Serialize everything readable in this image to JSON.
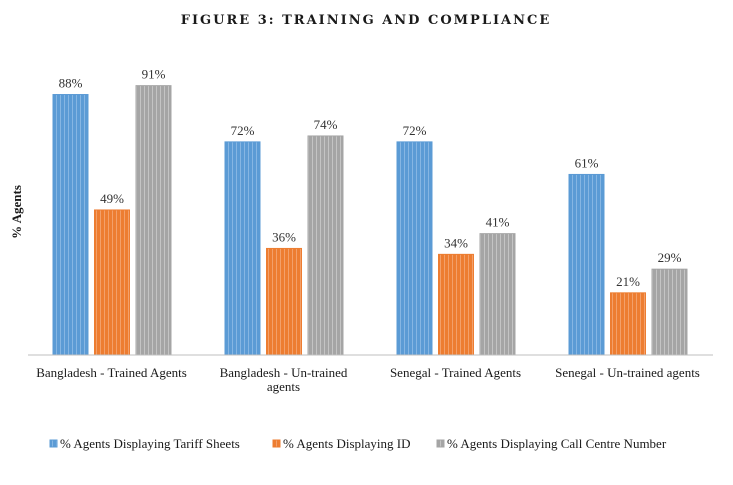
{
  "chart_data": {
    "type": "bar",
    "title": "FIGURE 3: TRAINING AND COMPLIANCE",
    "ylabel": "% Agents",
    "xlabel": "",
    "ylim": [
      0,
      100
    ],
    "grid": false,
    "legend_position": "bottom",
    "categories": [
      [
        "Bangladesh - Trained Agents"
      ],
      [
        "Bangladesh - Un-trained",
        "agents"
      ],
      [
        "Senegal - Trained Agents"
      ],
      [
        "Senegal - Un-trained agents"
      ]
    ],
    "series": [
      {
        "name": "% Agents Displaying Tariff Sheets",
        "values": [
          88,
          72,
          72,
          61
        ],
        "labels": [
          "88%",
          "72%",
          "72%",
          "61%"
        ],
        "color": "#5b9bd5"
      },
      {
        "name": "% Agents Displaying ID",
        "values": [
          49,
          36,
          34,
          21
        ],
        "labels": [
          "49%",
          "36%",
          "34%",
          "21%"
        ],
        "color": "#ed7d31"
      },
      {
        "name": "% Agents Displaying Call Centre Number",
        "values": [
          91,
          74,
          41,
          29
        ],
        "labels": [
          "91%",
          "74%",
          "41%",
          "29%"
        ],
        "color": "#a5a5a5"
      }
    ]
  }
}
